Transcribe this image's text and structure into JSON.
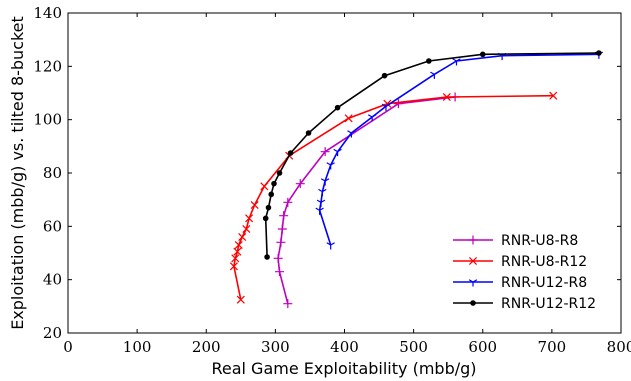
{
  "chart_data": {
    "type": "line",
    "title": "",
    "xlabel": "Real Game Exploitability (mbb/g)",
    "ylabel": "Exploitation (mbb/g) vs. tilted 8-bucket",
    "xlim": [
      0,
      800
    ],
    "ylim": [
      20,
      140
    ],
    "xticks": [
      0,
      100,
      200,
      300,
      400,
      500,
      600,
      700,
      800
    ],
    "yticks": [
      20,
      40,
      60,
      80,
      100,
      120,
      140
    ],
    "grid": false,
    "legend_position": "bottom-right",
    "series": [
      {
        "name": "RNR-U8-R8",
        "color": "#bf00bf",
        "marker": "plus",
        "points": [
          [
            318,
            31
          ],
          [
            306,
            43
          ],
          [
            304,
            48
          ],
          [
            308,
            54
          ],
          [
            310,
            59
          ],
          [
            312,
            64
          ],
          [
            318,
            69
          ],
          [
            336,
            76
          ],
          [
            372,
            88
          ],
          [
            478,
            106
          ],
          [
            560,
            108.5
          ]
        ]
      },
      {
        "name": "RNR-U8-R12",
        "color": "#ff0000",
        "marker": "x",
        "points": [
          [
            250,
            32.5
          ],
          [
            240,
            45
          ],
          [
            242,
            48
          ],
          [
            245,
            50.5
          ],
          [
            247,
            53
          ],
          [
            252,
            56
          ],
          [
            258,
            59
          ],
          [
            262,
            63
          ],
          [
            270,
            68
          ],
          [
            284,
            75
          ],
          [
            320,
            86.5
          ],
          [
            406,
            100.5
          ],
          [
            462,
            106
          ],
          [
            548,
            108.5
          ],
          [
            702,
            109
          ]
        ]
      },
      {
        "name": "RNR-U12-R8",
        "color": "#0000ff",
        "marker": "tri_down",
        "points": [
          [
            380,
            53
          ],
          [
            364,
            66
          ],
          [
            366,
            69
          ],
          [
            368,
            73
          ],
          [
            372,
            77
          ],
          [
            380,
            83
          ],
          [
            390,
            88
          ],
          [
            410,
            95
          ],
          [
            440,
            101
          ],
          [
            460,
            105
          ],
          [
            530,
            117
          ],
          [
            562,
            122
          ],
          [
            628,
            124
          ],
          [
            768,
            124.5
          ]
        ]
      },
      {
        "name": "RNR-U12-R12",
        "color": "#000000",
        "marker": "dot",
        "points": [
          [
            288,
            48.5
          ],
          [
            286,
            63
          ],
          [
            290,
            67
          ],
          [
            294,
            72
          ],
          [
            298,
            76
          ],
          [
            306,
            80
          ],
          [
            322,
            87.5
          ],
          [
            348,
            95
          ],
          [
            390,
            104.5
          ],
          [
            458,
            116.5
          ],
          [
            522,
            122
          ],
          [
            600,
            124.5
          ],
          [
            768,
            125
          ]
        ]
      }
    ]
  }
}
